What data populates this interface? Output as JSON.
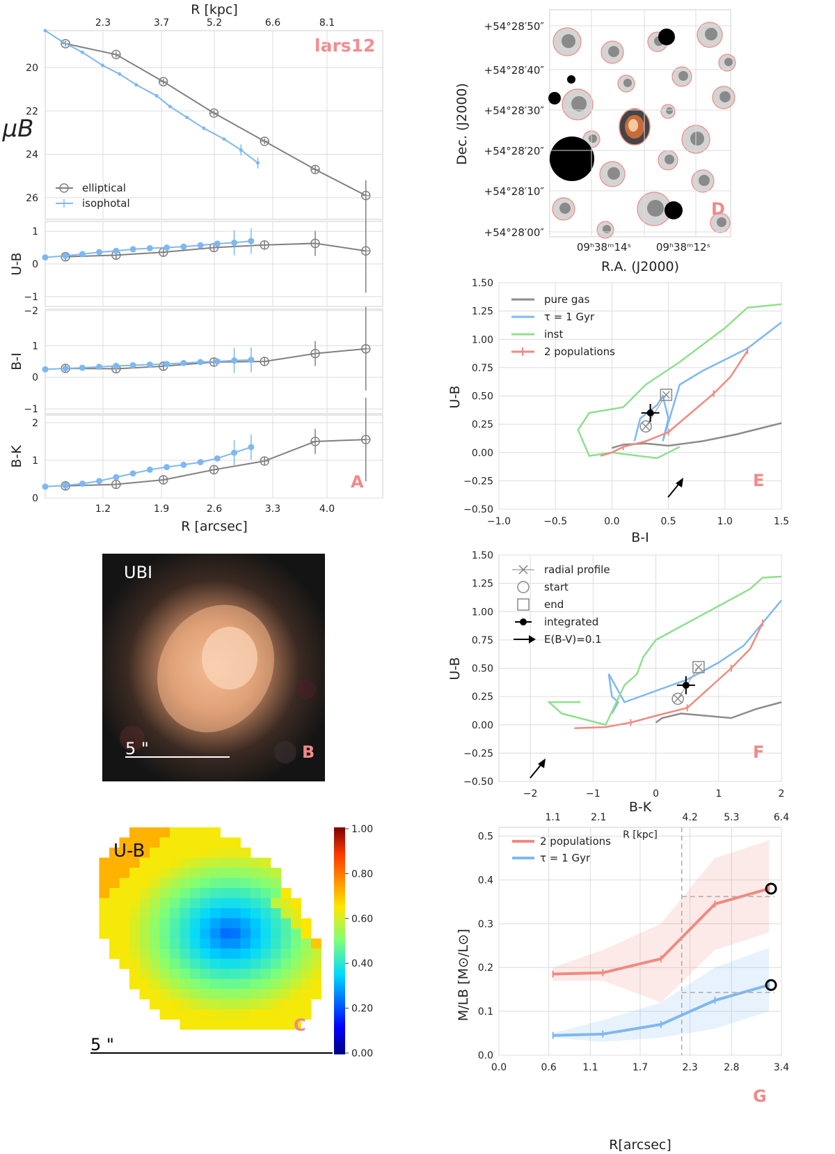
{
  "colors": {
    "elliptical": "#808080",
    "isophotal": "#7eb8f0",
    "pure_gas": "#8c8c8c",
    "tau": "#7eb8f0",
    "inst": "#8ee08e",
    "two_pop": "#f08a80",
    "panel_label": "#f08a8a",
    "integrated": "#000000"
  },
  "panels": {
    "A": "A",
    "B": "B",
    "C": "C",
    "D": "D",
    "E": "E",
    "F": "F",
    "G": "G"
  },
  "chart_data": [
    {
      "id": "A",
      "type": "line",
      "title": "lars12",
      "xlabel": "R [arcsec]",
      "top_xlabel": "R [kpc]",
      "xticks": [
        "1.2",
        "1.9",
        "2.6",
        "3.3",
        "4.0"
      ],
      "top_xticks": [
        "2.3",
        "3.7",
        "5.2",
        "6.6",
        "8.1"
      ],
      "legend": [
        "elliptical",
        "isophotal"
      ],
      "legend_position": "lower-left",
      "subplots": [
        {
          "ylabel": "μB",
          "ylim": [
            18.3,
            27.0
          ],
          "inverted": true,
          "yticks": [
            "20",
            "22",
            "24",
            "26"
          ],
          "series": [
            {
              "name": "elliptical",
              "x": [
                0.6,
                1.35,
                2.05,
                2.8,
                3.55,
                4.3,
                5.05
              ],
              "y": [
                18.9,
                19.4,
                20.65,
                22.1,
                23.4,
                24.7,
                25.9
              ]
            },
            {
              "name": "isophotal",
              "x": [
                0.3,
                0.55,
                0.85,
                1.15,
                1.4,
                1.65,
                1.95,
                2.15,
                2.4,
                2.65,
                2.95,
                3.2,
                3.45
              ],
              "y": [
                18.3,
                18.8,
                19.3,
                19.9,
                20.3,
                20.8,
                21.3,
                21.8,
                22.3,
                22.8,
                23.3,
                23.8,
                24.4
              ]
            }
          ]
        },
        {
          "ylabel": "U-B",
          "ylim": [
            -1.3,
            1.3
          ],
          "yticks": [
            "1",
            "0",
            "−1"
          ],
          "series": [
            {
              "name": "elliptical",
              "x": [
                0.6,
                1.35,
                2.05,
                2.8,
                3.55,
                4.3,
                5.05
              ],
              "y": [
                0.22,
                0.27,
                0.36,
                0.5,
                0.58,
                0.63,
                0.4
              ]
            },
            {
              "name": "isophotal",
              "x": [
                0.3,
                0.6,
                0.85,
                1.1,
                1.35,
                1.6,
                1.85,
                2.1,
                2.35,
                2.6,
                2.85,
                3.1,
                3.35
              ],
              "y": [
                0.2,
                0.25,
                0.3,
                0.36,
                0.4,
                0.45,
                0.48,
                0.5,
                0.53,
                0.57,
                0.62,
                0.65,
                0.7
              ]
            }
          ]
        },
        {
          "ylabel": "B-I",
          "ylim": [
            -1.15,
            2.15
          ],
          "yticks": [
            "−2",
            "1",
            "0",
            "−1"
          ],
          "series": [
            {
              "name": "elliptical",
              "x": [
                0.6,
                1.35,
                2.05,
                2.8,
                3.55,
                4.3,
                5.05
              ],
              "y": [
                0.28,
                0.27,
                0.35,
                0.48,
                0.5,
                0.75,
                0.9
              ]
            },
            {
              "name": "isophotal",
              "x": [
                0.3,
                0.6,
                0.85,
                1.1,
                1.35,
                1.6,
                1.85,
                2.1,
                2.35,
                2.6,
                2.85,
                3.1,
                3.35
              ],
              "y": [
                0.25,
                0.28,
                0.3,
                0.33,
                0.36,
                0.38,
                0.4,
                0.42,
                0.45,
                0.48,
                0.5,
                0.53,
                0.55
              ]
            }
          ]
        },
        {
          "ylabel": "B-K",
          "ylim": [
            0,
            2.2
          ],
          "yticks": [
            "2",
            "1",
            "0"
          ],
          "series": [
            {
              "name": "elliptical",
              "x": [
                0.6,
                1.35,
                2.05,
                2.8,
                3.55,
                4.3,
                5.05
              ],
              "y": [
                0.32,
                0.36,
                0.48,
                0.75,
                0.98,
                1.5,
                1.55
              ]
            },
            {
              "name": "isophotal",
              "x": [
                0.3,
                0.6,
                0.85,
                1.1,
                1.35,
                1.6,
                1.85,
                2.1,
                2.35,
                2.6,
                2.85,
                3.1,
                3.35
              ],
              "y": [
                0.3,
                0.33,
                0.38,
                0.45,
                0.55,
                0.65,
                0.75,
                0.82,
                0.88,
                0.95,
                1.05,
                1.2,
                1.35
              ]
            }
          ]
        }
      ]
    },
    {
      "id": "E",
      "type": "line",
      "xlabel": "B-I",
      "ylabel": "U-B",
      "xlim": [
        -1.0,
        1.5
      ],
      "ylim": [
        -0.5,
        1.5
      ],
      "xticks": [
        "−1.0",
        "−0.5",
        "0.0",
        "0.5",
        "1.0",
        "1.5"
      ],
      "yticks": [
        "1.50",
        "1.25",
        "1.00",
        "0.75",
        "0.50",
        "0.25",
        "0.00",
        "−0.25",
        "−0.50"
      ],
      "legend": [
        "pure gas",
        "τ = 1 Gyr",
        "inst",
        "2 populations"
      ],
      "series": [
        {
          "name": "pure gas",
          "x": [
            0.0,
            0.1,
            0.3,
            0.5,
            0.8,
            1.1,
            1.5
          ],
          "y": [
            0.04,
            0.07,
            0.08,
            0.06,
            0.1,
            0.16,
            0.26
          ]
        },
        {
          "name": "τ = 1 Gyr",
          "x": [
            0.2,
            0.25,
            0.4,
            0.45,
            0.5,
            0.45,
            0.6,
            0.8,
            1.0,
            1.2,
            1.5
          ],
          "y": [
            0.1,
            0.3,
            0.42,
            0.5,
            0.3,
            0.1,
            0.6,
            0.72,
            0.82,
            0.92,
            1.15
          ]
        },
        {
          "name": "inst",
          "x": [
            0.6,
            0.4,
            0.0,
            -0.2,
            -0.3,
            -0.2,
            0.1,
            0.3,
            0.6,
            0.8,
            1.0,
            1.2,
            1.5
          ],
          "y": [
            0.05,
            -0.05,
            0.0,
            -0.03,
            0.2,
            0.35,
            0.4,
            0.6,
            0.8,
            0.95,
            1.1,
            1.28,
            1.31
          ]
        },
        {
          "name": "2 populations",
          "x": [
            -0.1,
            0.0,
            0.1,
            0.3,
            0.5,
            0.7,
            0.9,
            1.05,
            1.2
          ],
          "y": [
            -0.03,
            0.0,
            0.05,
            0.1,
            0.18,
            0.35,
            0.52,
            0.67,
            0.9
          ]
        }
      ],
      "points": {
        "start": [
          0.3,
          0.23
        ],
        "end": [
          0.48,
          0.51
        ],
        "integrated": [
          0.34,
          0.35
        ]
      },
      "arrow": {
        "label": "E(B-V)=0.1"
      }
    },
    {
      "id": "F",
      "type": "line",
      "xlabel": "B-K",
      "ylabel": "U-B",
      "xlim": [
        -2.5,
        2.0
      ],
      "ylim": [
        -0.5,
        1.5
      ],
      "xticks": [
        "−2",
        "−1",
        "0",
        "1",
        "2"
      ],
      "yticks": [
        "1.50",
        "1.25",
        "1.00",
        "0.75",
        "0.50",
        "0.25",
        "0.00",
        "−0.25",
        "−0.50"
      ],
      "legend": [
        "radial profile",
        "start",
        "end",
        "integrated",
        "E(B-V)=0.1"
      ],
      "series": [
        {
          "name": "pure gas",
          "x": [
            0.0,
            0.1,
            0.4,
            0.8,
            1.2,
            1.6,
            2.0
          ],
          "y": [
            0.02,
            0.06,
            0.1,
            0.08,
            0.06,
            0.14,
            0.2
          ]
        },
        {
          "name": "τ = 1 Gyr",
          "x": [
            -0.7,
            -0.6,
            -0.7,
            -0.75,
            -0.5,
            0.0,
            0.5,
            1.0,
            1.4,
            1.7,
            2.0
          ],
          "y": [
            0.1,
            0.2,
            0.25,
            0.45,
            0.2,
            0.3,
            0.4,
            0.55,
            0.7,
            0.9,
            1.1
          ]
        },
        {
          "name": "inst",
          "x": [
            -1.2,
            -1.7,
            -1.5,
            -0.8,
            -0.5,
            -0.3,
            -0.2,
            0.0,
            0.5,
            1.0,
            1.5,
            1.7,
            2.0
          ],
          "y": [
            0.2,
            0.2,
            0.1,
            0.0,
            0.35,
            0.45,
            0.6,
            0.75,
            0.9,
            1.05,
            1.2,
            1.3,
            1.31
          ]
        },
        {
          "name": "2 populations",
          "x": [
            -1.3,
            -0.8,
            -0.4,
            0.0,
            0.5,
            0.9,
            1.2,
            1.5,
            1.7
          ],
          "y": [
            -0.03,
            -0.02,
            0.02,
            0.08,
            0.15,
            0.35,
            0.5,
            0.67,
            0.9
          ]
        }
      ],
      "points": {
        "start": [
          0.35,
          0.23
        ],
        "end": [
          0.68,
          0.51
        ],
        "integrated": [
          0.48,
          0.35
        ]
      }
    },
    {
      "id": "G",
      "type": "line",
      "xlabel": "R[arcsec]",
      "ylabel": "M/LB [M⊙/L⊙]",
      "top_xlabel": "R [kpc]",
      "xlim": [
        0.0,
        3.4
      ],
      "ylim": [
        0,
        0.52
      ],
      "xticks": [
        "0.0",
        "0.6",
        "1.1",
        "1.7",
        "2.3",
        "2.8",
        "3.4"
      ],
      "top_xticks": [
        "1.1",
        "2.1",
        "4.2",
        "5.3",
        "6.4"
      ],
      "yticks": [
        "0.5",
        "0.4",
        "0.3",
        "0.2",
        "0.1",
        "0.0"
      ],
      "legend": [
        "2 populations",
        "τ = 1 Gyr"
      ],
      "series": [
        {
          "name": "2 populations",
          "x": [
            0.65,
            1.25,
            1.95,
            2.6,
            3.25
          ],
          "y": [
            0.185,
            0.188,
            0.22,
            0.345,
            0.38
          ],
          "lower": [
            0.17,
            0.17,
            0.12,
            0.24,
            0.28
          ],
          "upper": [
            0.2,
            0.24,
            0.3,
            0.45,
            0.49
          ]
        },
        {
          "name": "τ = 1 Gyr",
          "x": [
            0.65,
            1.25,
            1.95,
            2.6,
            3.25
          ],
          "y": [
            0.045,
            0.048,
            0.07,
            0.125,
            0.16
          ],
          "lower": [
            0.04,
            0.03,
            0.04,
            0.06,
            0.1
          ],
          "upper": [
            0.05,
            0.08,
            0.12,
            0.2,
            0.245
          ]
        }
      ],
      "vline": 2.2,
      "hline_two_pop": 0.362,
      "hline_tau": 0.143
    }
  ],
  "image_B": {
    "label": "UBI",
    "scalebar": "5 \""
  },
  "map_C": {
    "label": "U-B",
    "scalebar": "5 \"",
    "colorbar_ticks": [
      "1.00",
      "0.80",
      "0.60",
      "0.40",
      "0.20",
      "0.00"
    ],
    "colorbar_range": [
      0,
      1
    ]
  },
  "image_D": {
    "xlabel": "R.A. (J2000)",
    "ylabel": "Dec. (J2000)",
    "yticks": [
      "+54°28′50″",
      "+54°28′40″",
      "+54°28′30″",
      "+54°28′20″",
      "+54°28′10″",
      "+54°28′00″"
    ],
    "xticks": [
      "09ʰ38ᵐ14ˢ",
      "09ʰ38ᵐ12ˢ"
    ]
  }
}
